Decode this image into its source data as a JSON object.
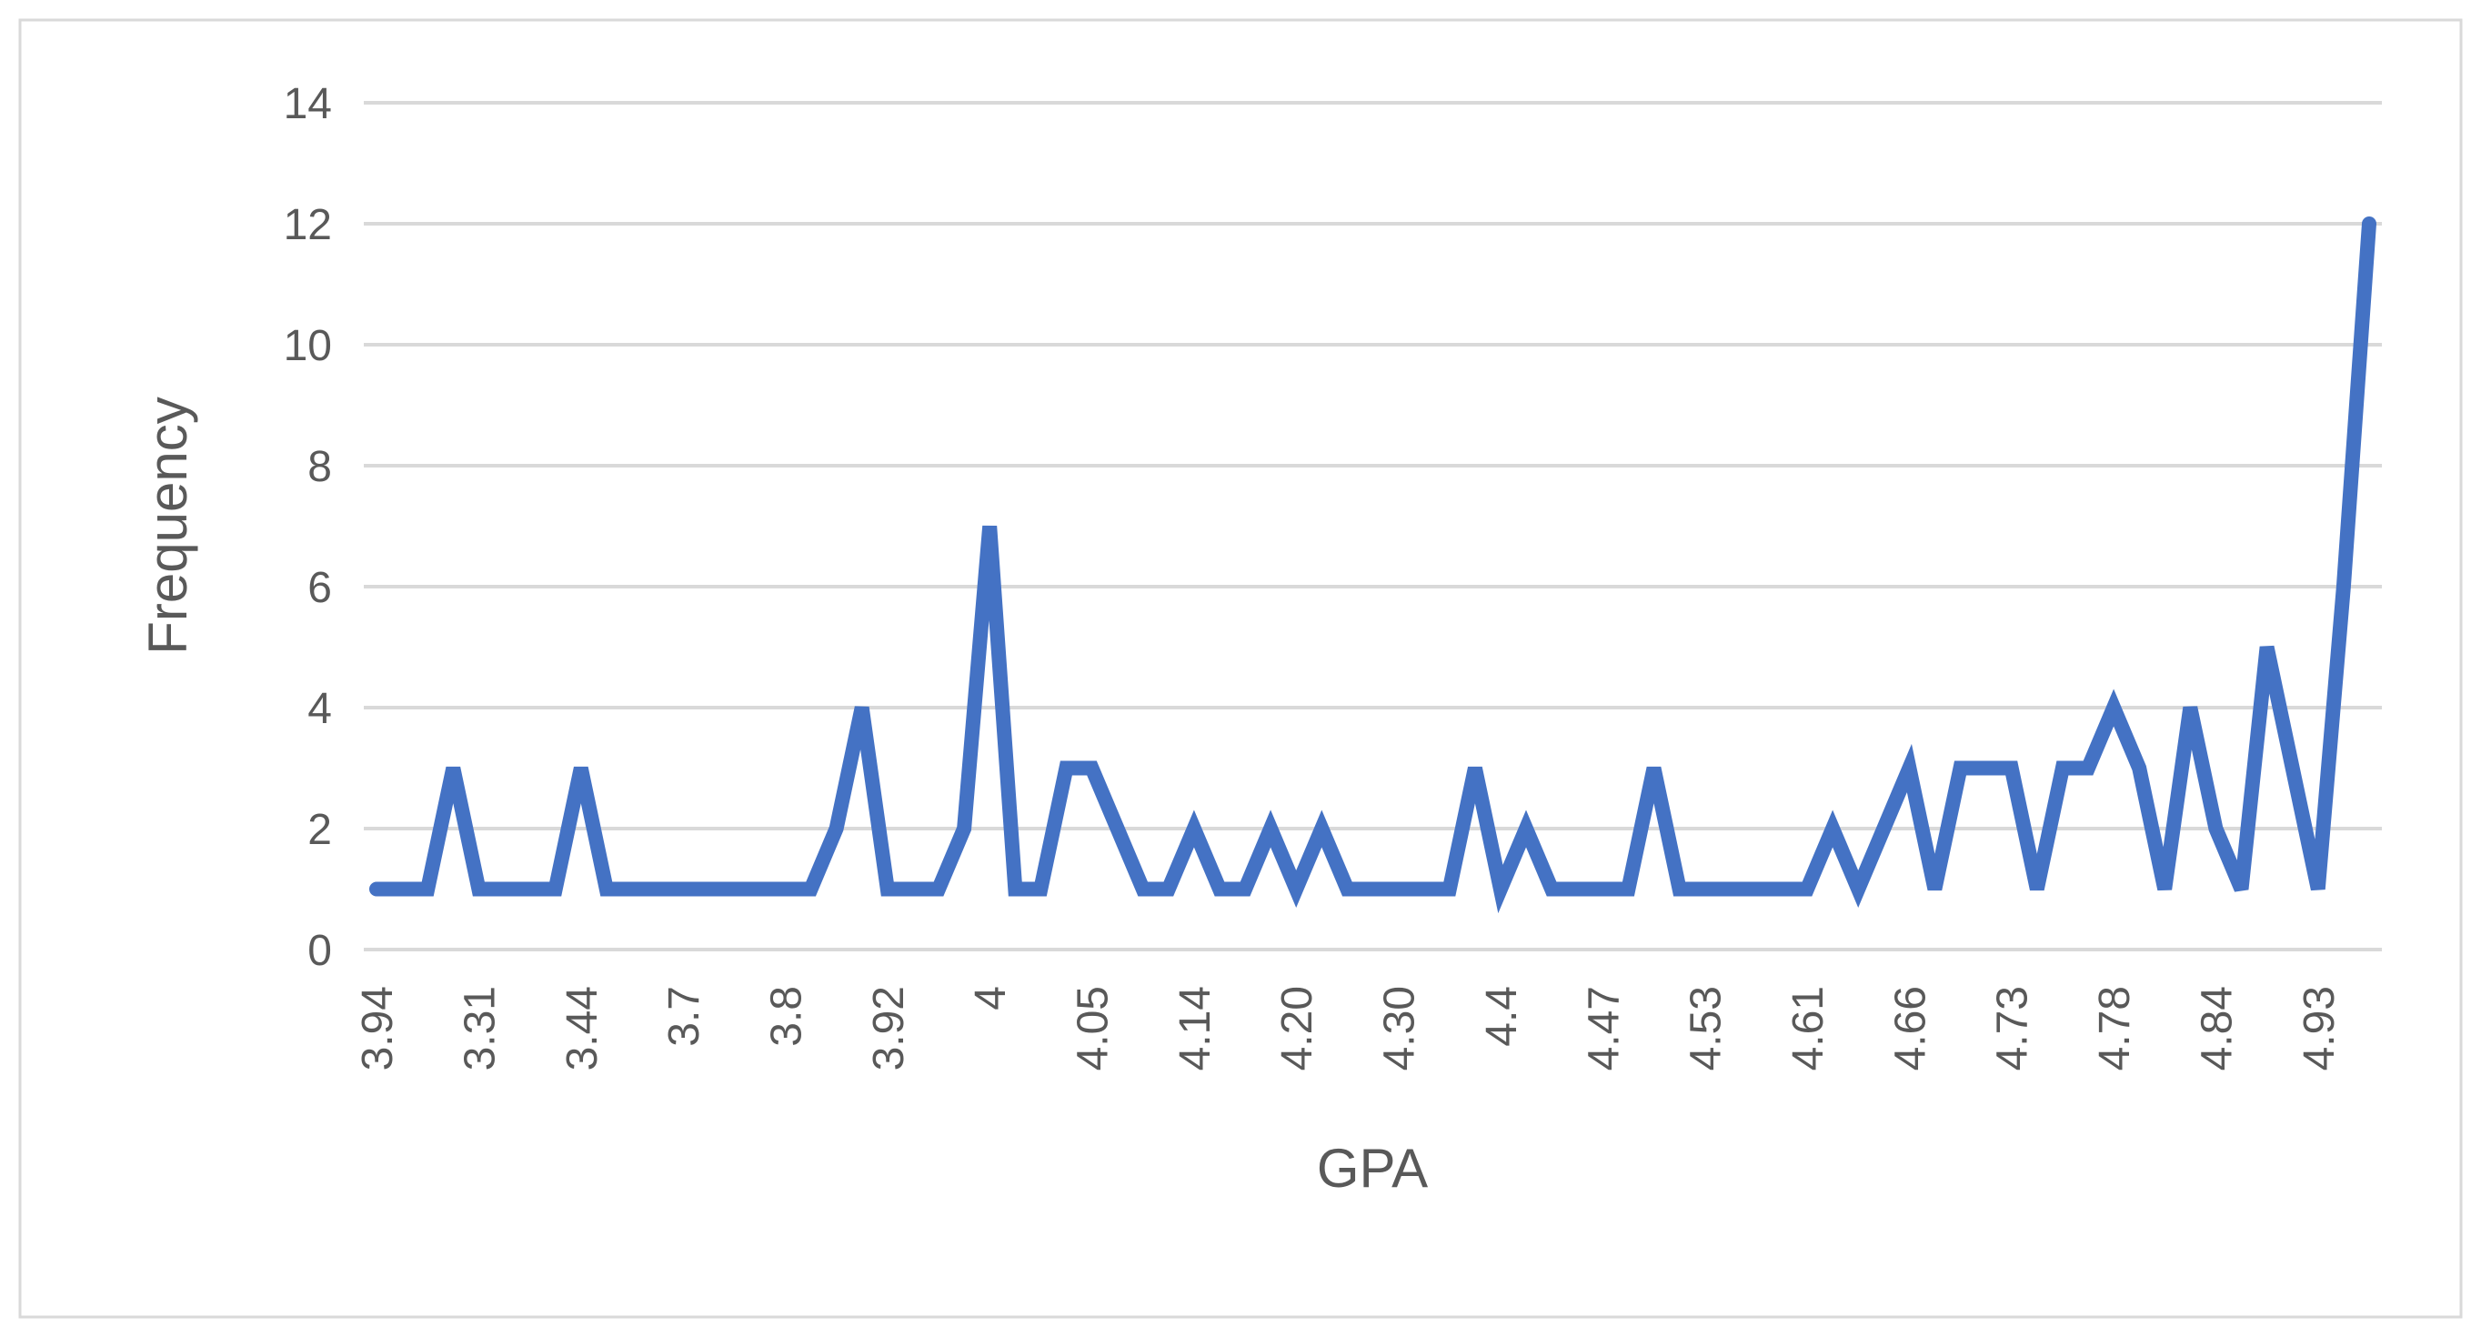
{
  "chart_data": {
    "type": "line",
    "x_label": "GPA",
    "y_label": "Frequency",
    "categories": [
      "3.94",
      null,
      null,
      null,
      "3.31",
      null,
      null,
      null,
      "3.44",
      null,
      null,
      null,
      "3.7",
      null,
      null,
      null,
      "3.8",
      null,
      null,
      null,
      "3.92",
      null,
      null,
      null,
      "4",
      null,
      null,
      null,
      "4.05",
      null,
      null,
      null,
      "4.14",
      null,
      null,
      null,
      "4.20",
      null,
      null,
      null,
      "4.30",
      null,
      null,
      null,
      "4.4",
      null,
      null,
      null,
      "4.47",
      null,
      null,
      null,
      "4.53",
      null,
      null,
      null,
      "4.61",
      null,
      null,
      null,
      "4.66",
      null,
      null,
      null,
      "4.73",
      null,
      null,
      null,
      "4.78",
      null,
      null,
      null,
      "4.84",
      null,
      null,
      null,
      "4.93",
      null,
      null
    ],
    "series": [
      {
        "name": "Frequency",
        "color": "#4472c4",
        "values": [
          1,
          1,
          1,
          3,
          1,
          1,
          1,
          1,
          3,
          1,
          1,
          1,
          1,
          1,
          1,
          1,
          1,
          1,
          2,
          4,
          1,
          1,
          1,
          2,
          7,
          1,
          1,
          3,
          3,
          2,
          1,
          1,
          2,
          1,
          1,
          2,
          1,
          2,
          1,
          1,
          1,
          1,
          1,
          3,
          1,
          2,
          1,
          1,
          1,
          1,
          3,
          1,
          1,
          1,
          1,
          1,
          1,
          2,
          1,
          2,
          3,
          1,
          3,
          3,
          3,
          1,
          3,
          3,
          4,
          3,
          1,
          4,
          2,
          1,
          5,
          3,
          1,
          6,
          12
        ]
      }
    ],
    "ylim": [
      0,
      14
    ],
    "yticks": [
      0,
      2,
      4,
      6,
      8,
      10,
      12,
      14
    ],
    "grid": true
  }
}
